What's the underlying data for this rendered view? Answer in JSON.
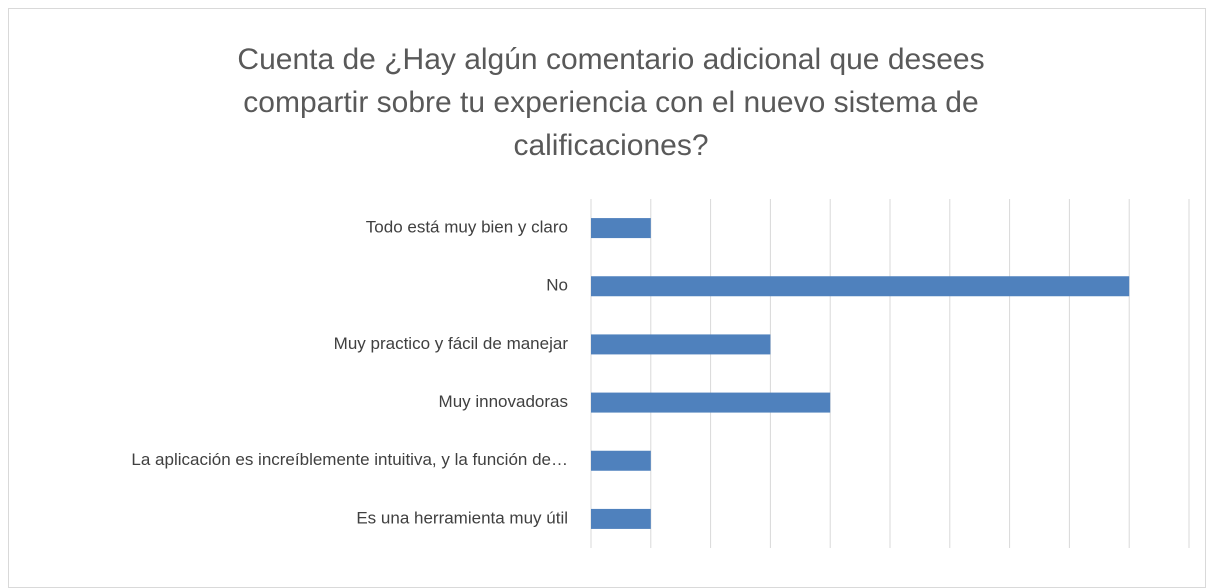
{
  "chart_data": {
    "type": "barh",
    "title": "Cuenta de ¿Hay algún comentario adicional que desees compartir sobre tu experiencia con el nuevo sistema de calificaciones?",
    "categories": [
      "Todo está muy bien y claro",
      "No",
      "Muy practico y fácil de manejar",
      "Muy innovadoras",
      "La aplicación es increíblemente intuitiva, y la función de…",
      "Es una herramienta muy útil"
    ],
    "values": [
      1,
      9,
      3,
      4,
      1,
      1
    ],
    "color": "#4f81bd",
    "xlim": [
      0,
      10
    ],
    "xticks": [
      0,
      1,
      2,
      3,
      4,
      5,
      6,
      7,
      8,
      9,
      10
    ],
    "grid": true
  }
}
